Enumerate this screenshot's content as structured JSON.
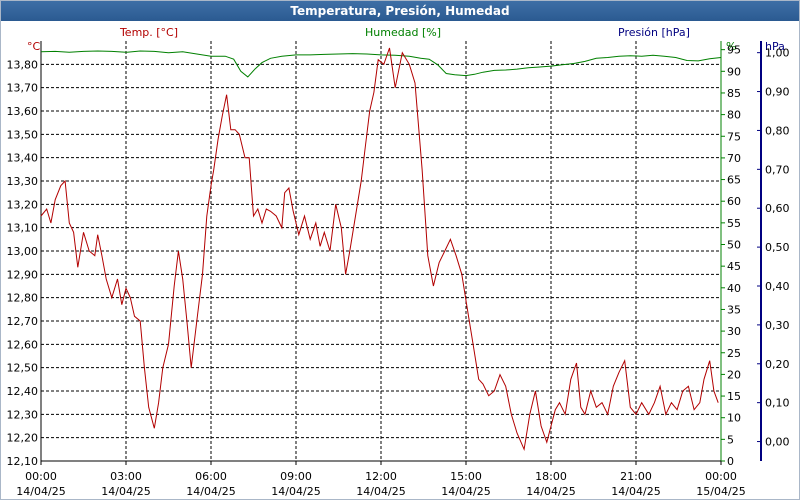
{
  "window": {
    "title": "Temperatura, Presión, Humedad"
  },
  "colors": {
    "temp": "#b20000",
    "humidity": "#008000",
    "pressure": "#000080",
    "title_bar": "#2f5f97"
  },
  "chart_data": {
    "type": "line",
    "title": "Temperatura, Presión, Humedad",
    "grid": true,
    "x_axis": {
      "range": [
        "2025-04-14 00:00",
        "2025-04-15 00:00"
      ],
      "ticks": [
        {
          "time": "00:00",
          "date": "14/04/25"
        },
        {
          "time": "03:00",
          "date": "14/04/25"
        },
        {
          "time": "06:00",
          "date": "14/04/25"
        },
        {
          "time": "09:00",
          "date": "14/04/25"
        },
        {
          "time": "12:00",
          "date": "14/04/25"
        },
        {
          "time": "15:00",
          "date": "14/04/25"
        },
        {
          "time": "18:00",
          "date": "14/04/25"
        },
        {
          "time": "21:00",
          "date": "14/04/25"
        },
        {
          "time": "00:00",
          "date": "15/04/25"
        }
      ]
    },
    "axes": {
      "temp": {
        "label": "Temp. [°C]",
        "unit": "°C",
        "range": [
          12.1,
          13.9
        ],
        "ticks": [
          "12,10",
          "12,20",
          "12,30",
          "12,40",
          "12,50",
          "12,60",
          "12,70",
          "12,80",
          "12,90",
          "13,00",
          "13,10",
          "13,20",
          "13,30",
          "13,40",
          "13,50",
          "13,60",
          "13,70",
          "13,80"
        ]
      },
      "humidity": {
        "label": "Humedad [%]",
        "unit": "%",
        "range": [
          0,
          97
        ],
        "ticks": [
          "0",
          "5",
          "10",
          "15",
          "20",
          "25",
          "30",
          "35",
          "40",
          "45",
          "50",
          "55",
          "60",
          "65",
          "70",
          "75",
          "80",
          "85",
          "90",
          "95"
        ]
      },
      "pressure": {
        "label": "Presión [hPa]",
        "unit": "hPa",
        "range": [
          -0.05,
          1.03
        ],
        "ticks": [
          "0,00",
          "0,10",
          "0,20",
          "0,30",
          "0,40",
          "0,50",
          "0,60",
          "0,70",
          "0,80",
          "0,90",
          "1,00"
        ]
      }
    },
    "series": [
      {
        "name": "Temp. [°C]",
        "axis": "temp",
        "x": [
          0.0,
          0.2,
          0.35,
          0.5,
          0.7,
          0.85,
          1.0,
          1.15,
          1.3,
          1.5,
          1.7,
          1.9,
          2.0,
          2.15,
          2.3,
          2.5,
          2.7,
          2.85,
          3.0,
          3.15,
          3.3,
          3.5,
          3.65,
          3.8,
          4.0,
          4.15,
          4.3,
          4.5,
          4.7,
          4.85,
          5.0,
          5.15,
          5.3,
          5.5,
          5.7,
          5.85,
          6.0,
          6.1,
          6.25,
          6.4,
          6.55,
          6.7,
          6.85,
          7.0,
          7.2,
          7.35,
          7.5,
          7.65,
          7.8,
          7.95,
          8.1,
          8.3,
          8.5,
          8.6,
          8.75,
          8.9,
          9.1,
          9.3,
          9.5,
          9.7,
          9.85,
          10.0,
          10.2,
          10.4,
          10.6,
          10.75,
          10.9,
          11.1,
          11.3,
          11.45,
          11.6,
          11.75,
          11.9,
          12.1,
          12.3,
          12.5,
          12.75,
          13.0,
          13.2,
          13.45,
          13.65,
          13.85,
          14.05,
          14.25,
          14.45,
          14.65,
          14.85,
          15.05,
          15.25,
          15.45,
          15.6,
          15.8,
          16.0,
          16.2,
          16.4,
          16.6,
          16.8,
          17.05,
          17.25,
          17.45,
          17.65,
          17.85,
          18.0,
          18.15,
          18.3,
          18.5,
          18.7,
          18.9,
          19.05,
          19.2,
          19.4,
          19.6,
          19.8,
          20.0,
          20.2,
          20.4,
          20.6,
          20.8,
          21.0,
          21.2,
          21.45,
          21.65,
          21.85,
          22.05,
          22.25,
          22.45,
          22.65,
          22.85,
          23.05,
          23.25,
          23.4,
          23.6,
          23.75,
          23.9
        ],
        "values": [
          13.15,
          13.18,
          13.12,
          13.22,
          13.28,
          13.3,
          13.12,
          13.08,
          12.93,
          13.08,
          13.0,
          12.98,
          13.07,
          12.98,
          12.88,
          12.8,
          12.88,
          12.77,
          12.84,
          12.8,
          12.72,
          12.7,
          12.5,
          12.33,
          12.24,
          12.35,
          12.5,
          12.6,
          12.85,
          13.0,
          12.88,
          12.7,
          12.5,
          12.7,
          12.9,
          13.15,
          13.28,
          13.35,
          13.48,
          13.58,
          13.67,
          13.52,
          13.52,
          13.5,
          13.4,
          13.4,
          13.15,
          13.18,
          13.12,
          13.18,
          13.17,
          13.15,
          13.1,
          13.25,
          13.27,
          13.17,
          13.07,
          13.15,
          13.05,
          13.12,
          13.02,
          13.08,
          13.0,
          13.2,
          13.1,
          12.9,
          13.0,
          13.15,
          13.3,
          13.45,
          13.6,
          13.68,
          13.82,
          13.8,
          13.87,
          13.7,
          13.85,
          13.8,
          13.72,
          13.35,
          12.98,
          12.85,
          12.95,
          13.0,
          13.05,
          12.98,
          12.9,
          12.75,
          12.6,
          12.45,
          12.43,
          12.38,
          12.4,
          12.47,
          12.42,
          12.3,
          12.22,
          12.15,
          12.3,
          12.4,
          12.25,
          12.18,
          12.25,
          12.32,
          12.35,
          12.3,
          12.45,
          12.52,
          12.33,
          12.3,
          12.4,
          12.33,
          12.35,
          12.3,
          12.42,
          12.48,
          12.53,
          12.33,
          12.3,
          12.35,
          12.3,
          12.35,
          12.42,
          12.3,
          12.35,
          12.32,
          12.4,
          12.42,
          12.32,
          12.35,
          12.45,
          12.53,
          12.4,
          12.35
        ]
      },
      {
        "name": "Humedad [%]",
        "axis": "humidity",
        "x": [
          0.0,
          0.5,
          1.0,
          1.5,
          2.0,
          2.5,
          3.0,
          3.5,
          4.0,
          4.5,
          5.0,
          5.5,
          6.0,
          6.5,
          6.8,
          7.05,
          7.3,
          7.55,
          7.8,
          8.1,
          8.5,
          9.0,
          9.5,
          10.0,
          10.5,
          11.0,
          11.5,
          12.0,
          12.5,
          13.0,
          13.4,
          13.7,
          14.0,
          14.3,
          14.6,
          15.0,
          15.3,
          15.6,
          16.0,
          16.4,
          16.8,
          17.2,
          17.6,
          18.0,
          18.4,
          18.8,
          19.2,
          19.6,
          20.0,
          20.4,
          20.8,
          21.2,
          21.6,
          22.0,
          22.4,
          22.8,
          23.2,
          23.6,
          24.0
        ],
        "values": [
          94.5,
          94.6,
          94.4,
          94.6,
          94.7,
          94.6,
          94.4,
          94.7,
          94.6,
          94.3,
          94.5,
          94.0,
          93.5,
          93.5,
          92.8,
          90.0,
          88.7,
          90.5,
          92.0,
          93.0,
          93.5,
          93.8,
          93.8,
          93.9,
          94.0,
          94.1,
          94.0,
          93.8,
          93.7,
          93.5,
          93.0,
          92.8,
          91.5,
          89.5,
          89.2,
          89.0,
          89.3,
          89.8,
          90.2,
          90.3,
          90.5,
          90.8,
          91.0,
          91.2,
          91.5,
          91.8,
          92.3,
          93.0,
          93.2,
          93.5,
          93.6,
          93.5,
          93.7,
          93.5,
          93.2,
          92.5,
          92.4,
          92.9,
          93.2
        ]
      }
    ]
  }
}
